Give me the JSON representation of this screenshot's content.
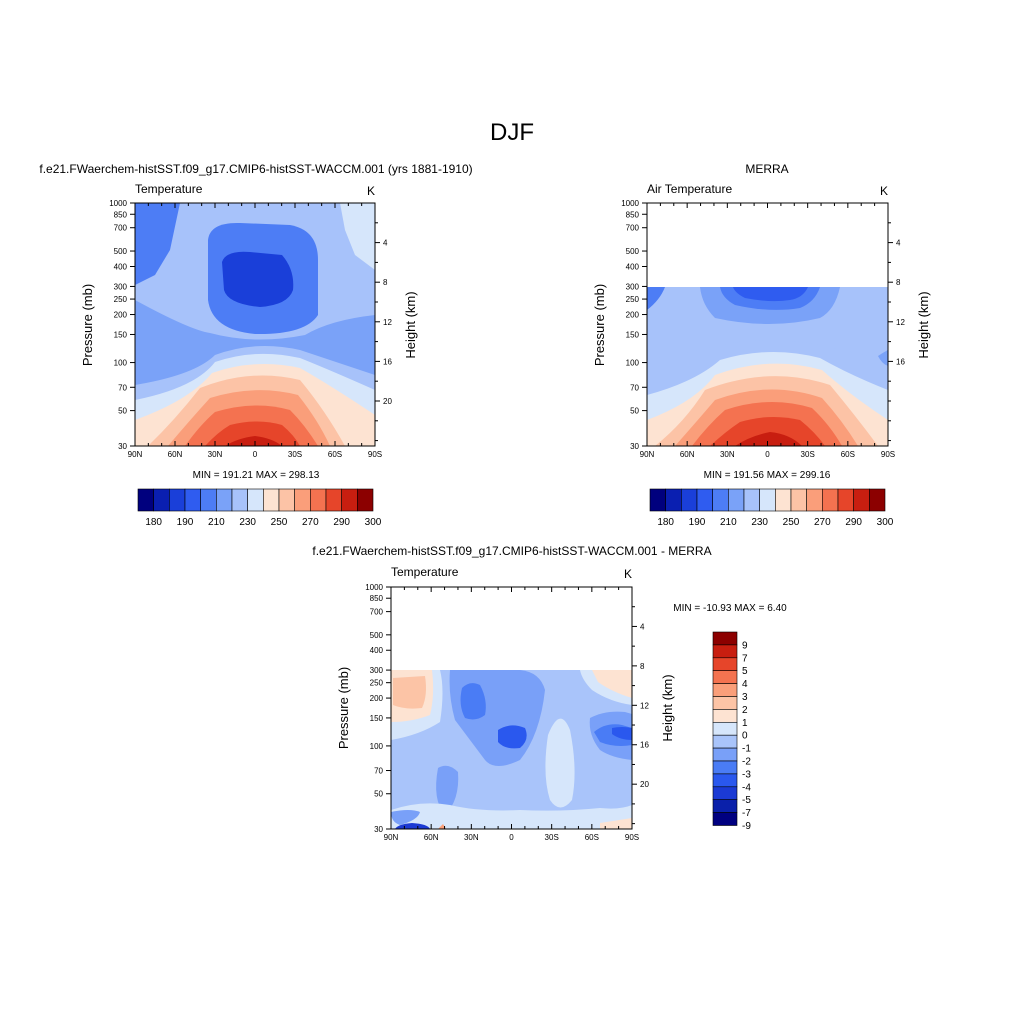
{
  "page_title": "DJF",
  "colors": {
    "temp_scale": [
      "#00007e",
      "#0a1fb1",
      "#1a3fd9",
      "#2f5cf0",
      "#4d7df5",
      "#7aa2f8",
      "#a7c2fa",
      "#d6e6fb",
      "#fde3d2",
      "#fcc3a6",
      "#fa9e7a",
      "#f47250",
      "#e6452a",
      "#c81e10",
      "#8c0000"
    ],
    "diff_scale": [
      "#000080",
      "#0a20aa",
      "#1b3ad4",
      "#2a58ee",
      "#4a7cf5",
      "#79a0f8",
      "#a9c4fa",
      "#d6e6fb",
      "#fde3d2",
      "#fcc4a6",
      "#fa9f7a",
      "#f47350",
      "#e6452a",
      "#c81e10",
      "#8c0000"
    ]
  },
  "chart_data": [
    {
      "id": "model",
      "type": "contour",
      "title": "f.e21.FWaerchem-histSST.f09_g17.CMIP6-histSST-WACCM.001 (yrs 1881-1910)",
      "left_label": "Temperature",
      "right_label": "K",
      "ylabel": "Pressure (mb)",
      "y2label": "Height (km)",
      "x_ticks": [
        "90N",
        "60N",
        "30N",
        "0",
        "30S",
        "60S",
        "90S"
      ],
      "y_ticks": [
        "30",
        "50",
        "70",
        "100",
        "150",
        "200",
        "250",
        "300",
        "400",
        "500",
        "700",
        "850",
        "1000"
      ],
      "y2_ticks": [
        "4",
        "8",
        "12",
        "16",
        "20"
      ],
      "stats": "MIN = 191.21  MAX = 298.13",
      "colorbar_labels": [
        "180",
        "190",
        "210",
        "230",
        "250",
        "270",
        "290",
        "300"
      ]
    },
    {
      "id": "obs",
      "type": "contour",
      "title": "MERRA",
      "left_label": "Air Temperature",
      "right_label": "K",
      "ylabel": "Pressure (mb)",
      "y2label": "Height (km)",
      "x_ticks": [
        "90N",
        "60N",
        "30N",
        "0",
        "30S",
        "60S",
        "90S"
      ],
      "y_ticks": [
        "30",
        "50",
        "70",
        "100",
        "150",
        "200",
        "250",
        "300",
        "400",
        "500",
        "700",
        "850",
        "1000"
      ],
      "y2_ticks": [
        "4",
        "8",
        "12",
        "16"
      ],
      "stats": "MIN = 191.56  MAX = 299.16",
      "colorbar_labels": [
        "180",
        "190",
        "210",
        "230",
        "250",
        "270",
        "290",
        "300"
      ]
    },
    {
      "id": "diff",
      "type": "contour",
      "title": "f.e21.FWaerchem-histSST.f09_g17.CMIP6-histSST-WACCM.001 - MERRA",
      "left_label": "Temperature",
      "right_label": "K",
      "ylabel": "Pressure (mb)",
      "y2label": "Height (km)",
      "x_ticks": [
        "90N",
        "60N",
        "30N",
        "0",
        "30S",
        "60S",
        "90S"
      ],
      "y_ticks": [
        "30",
        "50",
        "70",
        "100",
        "150",
        "200",
        "250",
        "300",
        "400",
        "500",
        "700",
        "850",
        "1000"
      ],
      "y2_ticks": [
        "4",
        "8",
        "12",
        "16",
        "20"
      ],
      "stats": "MIN = -10.93  MAX =   6.40",
      "colorbar_labels": [
        "9",
        "7",
        "5",
        "4",
        "3",
        "2",
        "1",
        "0",
        "-1",
        "-2",
        "-3",
        "-4",
        "-5",
        "-7",
        "-9"
      ]
    }
  ]
}
